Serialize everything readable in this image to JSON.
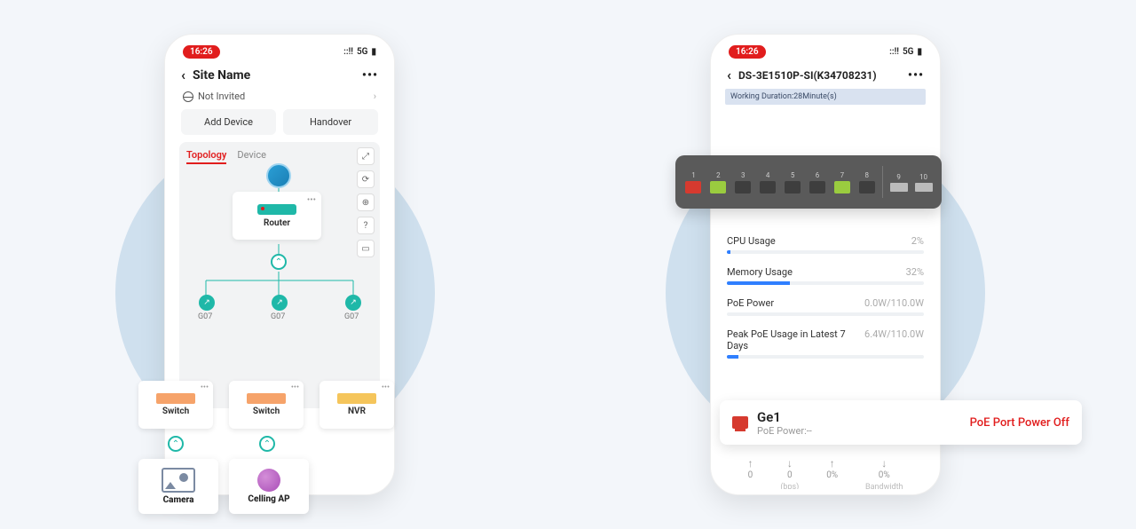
{
  "statusbar": {
    "time": "16:26",
    "net": "5G",
    "signal": "::!!"
  },
  "left": {
    "title": "Site Name",
    "invite_label": "Not Invited",
    "buttons": {
      "add": "Add Device",
      "handover": "Handover"
    },
    "tabs": {
      "topology": "Topology",
      "device": "Device"
    },
    "router_label": "Router",
    "ports": {
      "g1": "G07",
      "g2": "G07",
      "g3": "G07"
    },
    "cards": {
      "switch": "Switch",
      "nvr": "NVR",
      "camera": "Camera",
      "ap": "Celling AP"
    }
  },
  "right": {
    "title": "DS-3E1510P-SI(K34708231)",
    "working_duration": "Working Duration:28Minute(s)",
    "ports": [
      {
        "n": "1",
        "color": "#d63a2f"
      },
      {
        "n": "2",
        "color": "#9acc3f"
      },
      {
        "n": "3",
        "color": "#3e3e3e"
      },
      {
        "n": "4",
        "color": "#3e3e3e"
      },
      {
        "n": "5",
        "color": "#3e3e3e"
      },
      {
        "n": "6",
        "color": "#3e3e3e"
      },
      {
        "n": "7",
        "color": "#9acc3f"
      },
      {
        "n": "8",
        "color": "#3e3e3e"
      }
    ],
    "sfp": [
      "9",
      "10"
    ],
    "metrics": {
      "cpu": {
        "label": "CPU Usage",
        "value": "2%",
        "pct": 2,
        "color": "#2f7fff"
      },
      "mem": {
        "label": "Memory Usage",
        "value": "32%",
        "pct": 32,
        "color": "#2f7fff"
      },
      "poe": {
        "label": "PoE Power",
        "value": "0.0W/110.0W",
        "pct": 0,
        "color": "#2f7fff"
      },
      "peak": {
        "label": "Peak PoE Usage in Latest 7 Days",
        "value": "6.4W/110.0W",
        "pct": 6,
        "color": "#2f7fff"
      }
    },
    "callout": {
      "name": "Ge1",
      "sub": "PoE Power:--",
      "status": "PoE Port Power Off"
    },
    "foot": {
      "rate_up": "0",
      "rate_dn": "0",
      "rate_unit": "(bps)",
      "bw_up": "0%",
      "bw_dn": "0%",
      "bw_unit": "Bandwidth"
    }
  }
}
